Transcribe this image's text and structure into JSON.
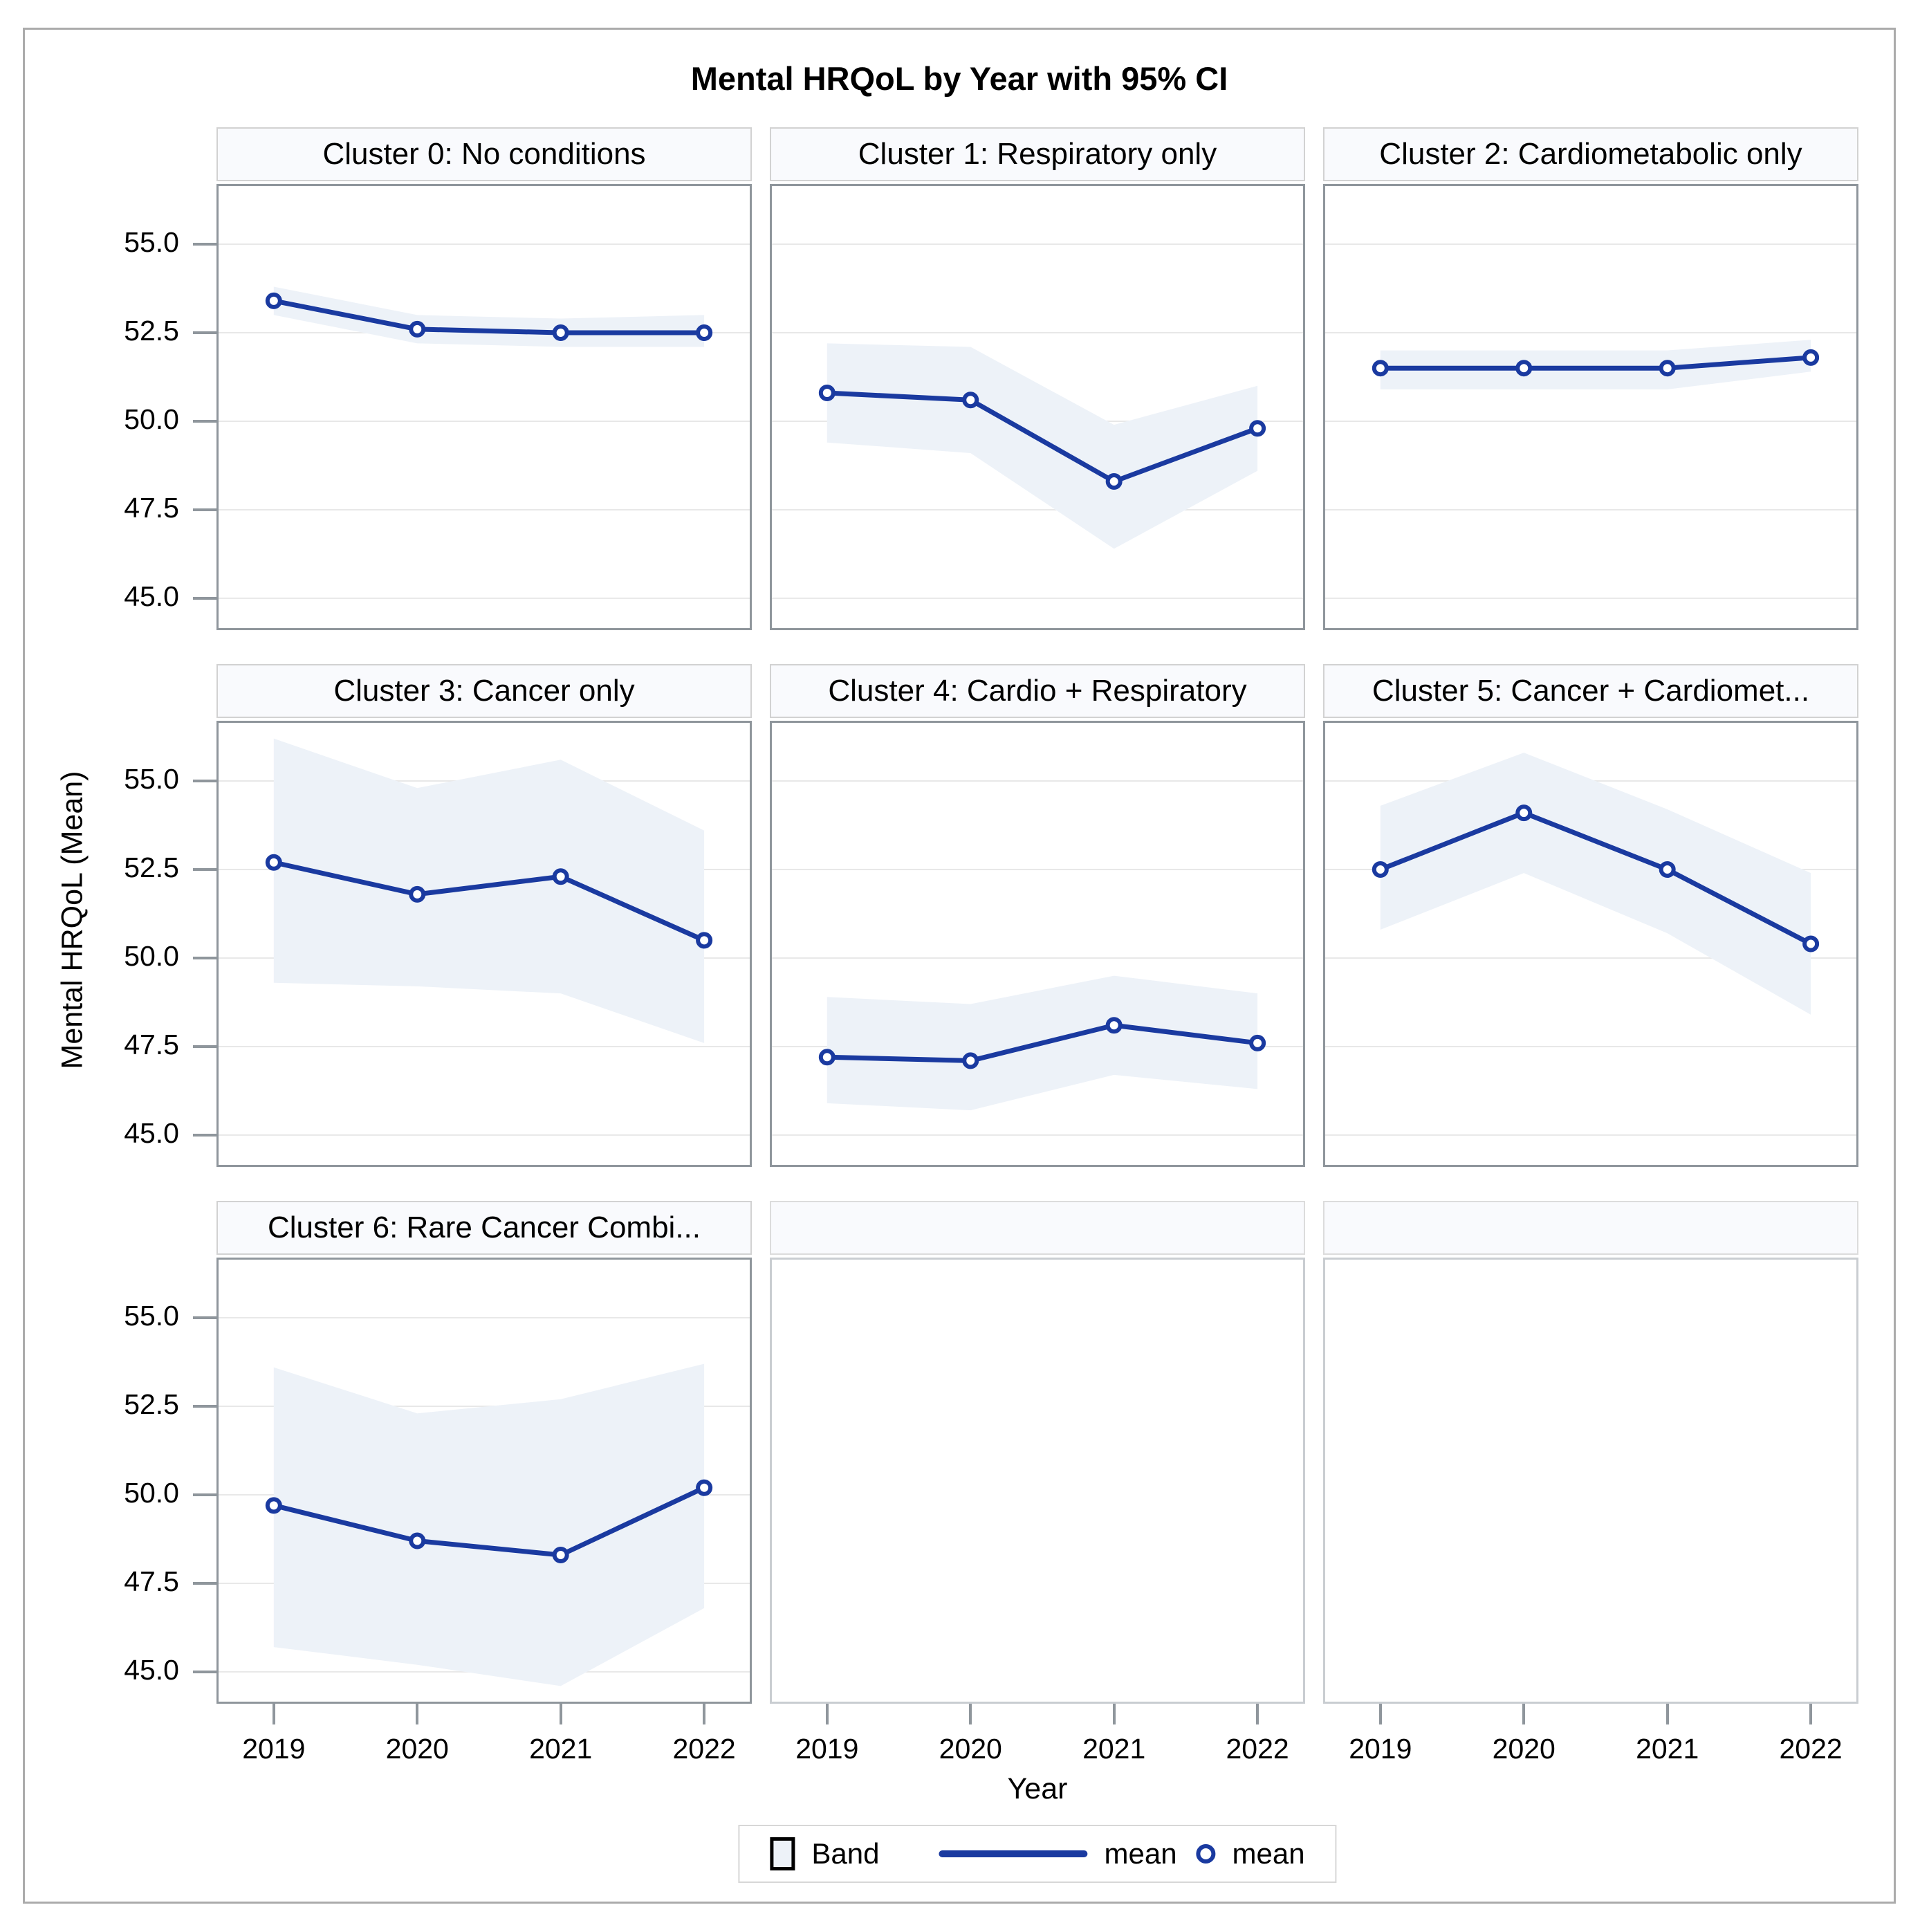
{
  "title": "Mental HRQoL by Year with 95% CI",
  "yaxis": {
    "label": "Mental HRQoL (Mean)",
    "ticks": [
      "55.0",
      "52.5",
      "50.0",
      "47.5",
      "45.0"
    ],
    "tick_values": [
      55.0,
      52.5,
      50.0,
      47.5,
      45.0
    ]
  },
  "xaxis": {
    "label": "Year",
    "ticks": [
      "2019",
      "2020",
      "2021",
      "2022"
    ]
  },
  "legend": {
    "band_label": "Band",
    "line_label": "mean",
    "marker_label": "mean"
  },
  "colors": {
    "line": "#1a3aa0",
    "band": "#edf2f8",
    "grid": "#e8e8e8",
    "panel_border": "#8f969c",
    "empty_panel_border": "#c9cdd1",
    "header_fill": "#f9fafd",
    "tick": "#8f969c"
  },
  "chart_data": {
    "type": "line",
    "x": [
      2019,
      2020,
      2021,
      2022
    ],
    "ylim": [
      44.1,
      56.7
    ],
    "grid": true,
    "legend_position": "bottom",
    "title": "Mental HRQoL by Year with 95% CI",
    "xlabel": "Year",
    "ylabel": "Mental HRQoL (Mean)",
    "panels": [
      {
        "title": "Cluster 0: No conditions",
        "mean": [
          53.4,
          52.6,
          52.5,
          52.5
        ],
        "ci_upper": [
          53.8,
          53.0,
          52.9,
          53.0
        ],
        "ci_lower": [
          53.0,
          52.2,
          52.1,
          52.1
        ],
        "empty": false
      },
      {
        "title": "Cluster 1: Respiratory only",
        "mean": [
          50.8,
          50.6,
          48.3,
          49.8
        ],
        "ci_upper": [
          52.2,
          52.1,
          49.9,
          51.0
        ],
        "ci_lower": [
          49.4,
          49.1,
          46.4,
          48.6
        ],
        "empty": false
      },
      {
        "title": "Cluster 2: Cardiometabolic only",
        "mean": [
          51.5,
          51.5,
          51.5,
          51.8
        ],
        "ci_upper": [
          52.0,
          52.0,
          52.0,
          52.3
        ],
        "ci_lower": [
          50.9,
          50.9,
          50.9,
          51.4
        ],
        "empty": false
      },
      {
        "title": "Cluster 3: Cancer only",
        "mean": [
          52.7,
          51.8,
          52.3,
          50.5
        ],
        "ci_upper": [
          56.2,
          54.8,
          55.6,
          53.6
        ],
        "ci_lower": [
          49.3,
          49.2,
          49.0,
          47.6
        ],
        "empty": false
      },
      {
        "title": "Cluster 4: Cardio + Respiratory",
        "mean": [
          47.2,
          47.1,
          48.1,
          47.6
        ],
        "ci_upper": [
          48.9,
          48.7,
          49.5,
          49.0
        ],
        "ci_lower": [
          45.9,
          45.7,
          46.7,
          46.3
        ],
        "empty": false
      },
      {
        "title": "Cluster 5: Cancer + Cardiomet...",
        "mean": [
          52.5,
          54.1,
          52.5,
          50.4
        ],
        "ci_upper": [
          54.3,
          55.8,
          54.2,
          52.4
        ],
        "ci_lower": [
          50.8,
          52.4,
          50.7,
          48.4
        ],
        "empty": false
      },
      {
        "title": "Cluster 6: Rare Cancer Combi...",
        "mean": [
          49.7,
          48.7,
          48.3,
          50.2
        ],
        "ci_upper": [
          53.6,
          52.3,
          52.7,
          53.7
        ],
        "ci_lower": [
          45.7,
          45.2,
          44.6,
          46.8
        ],
        "empty": false
      },
      {
        "title": "",
        "empty": true
      },
      {
        "title": "",
        "empty": true
      }
    ]
  }
}
